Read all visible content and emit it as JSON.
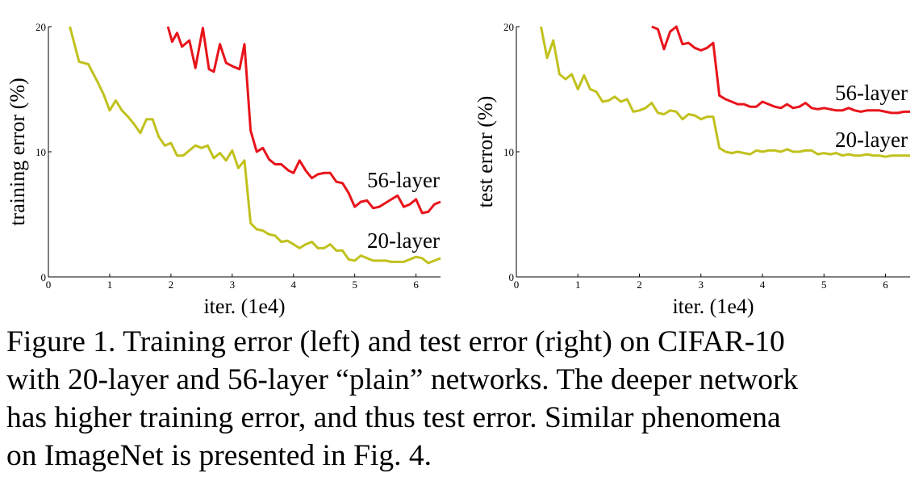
{
  "chart_data": [
    {
      "type": "line",
      "xlabel": "iter. (1e4)",
      "ylabel": "training error (%)",
      "xlim": [
        0,
        6.4
      ],
      "ylim": [
        0,
        20
      ],
      "xticks": [
        0,
        1,
        2,
        3,
        4,
        5,
        6
      ],
      "yticks": [
        0,
        10,
        20
      ],
      "series": [
        {
          "name": "56-layer",
          "color": "#e8141b",
          "x": [
            1.95,
            2.02,
            2.1,
            2.18,
            2.3,
            2.4,
            2.52,
            2.62,
            2.7,
            2.8,
            2.9,
            3.02,
            3.12,
            3.2,
            3.3,
            3.4,
            3.5,
            3.6,
            3.7,
            3.8,
            3.92,
            4.0,
            4.1,
            4.2,
            4.3,
            4.4,
            4.5,
            4.6,
            4.7,
            4.8,
            4.9,
            5.0,
            5.1,
            5.2,
            5.3,
            5.4,
            5.5,
            5.6,
            5.7,
            5.8,
            5.9,
            6.0,
            6.1,
            6.2,
            6.3,
            6.4
          ],
          "y": [
            20.0,
            18.8,
            19.5,
            18.4,
            18.9,
            16.7,
            19.9,
            16.6,
            16.4,
            18.6,
            17.1,
            16.8,
            16.6,
            18.6,
            11.7,
            10.0,
            10.3,
            9.4,
            9.0,
            9.0,
            8.5,
            8.3,
            9.3,
            8.5,
            7.9,
            8.2,
            8.3,
            8.3,
            7.6,
            7.5,
            6.7,
            5.6,
            6.0,
            6.1,
            5.5,
            5.6,
            5.9,
            6.2,
            6.5,
            5.6,
            5.8,
            6.2,
            5.1,
            5.2,
            5.8,
            6.0
          ]
        },
        {
          "name": "20-layer",
          "color": "#c1c11e",
          "x": [
            0.35,
            0.5,
            0.65,
            0.8,
            0.9,
            1.0,
            1.1,
            1.2,
            1.3,
            1.4,
            1.5,
            1.6,
            1.7,
            1.8,
            1.9,
            2.0,
            2.1,
            2.2,
            2.3,
            2.4,
            2.5,
            2.6,
            2.7,
            2.8,
            2.9,
            3.0,
            3.1,
            3.2,
            3.3,
            3.4,
            3.5,
            3.6,
            3.7,
            3.8,
            3.9,
            4.0,
            4.1,
            4.2,
            4.3,
            4.4,
            4.5,
            4.6,
            4.7,
            4.8,
            4.9,
            5.0,
            5.1,
            5.2,
            5.3,
            5.4,
            5.5,
            5.6,
            5.7,
            5.8,
            5.9,
            6.0,
            6.1,
            6.2,
            6.3,
            6.4
          ],
          "y": [
            20.0,
            17.2,
            17.0,
            15.6,
            14.6,
            13.3,
            14.1,
            13.3,
            12.8,
            12.2,
            11.5,
            12.6,
            12.6,
            11.2,
            10.5,
            10.7,
            9.7,
            9.7,
            10.1,
            10.5,
            10.3,
            10.5,
            9.5,
            9.9,
            9.3,
            10.1,
            8.7,
            9.3,
            4.3,
            3.8,
            3.7,
            3.4,
            3.3,
            2.8,
            2.9,
            2.6,
            2.3,
            2.6,
            2.8,
            2.3,
            2.3,
            2.6,
            2.1,
            2.1,
            1.4,
            1.3,
            1.7,
            1.5,
            1.3,
            1.3,
            1.3,
            1.2,
            1.2,
            1.2,
            1.4,
            1.6,
            1.5,
            1.1,
            1.3,
            1.5
          ]
        }
      ]
    },
    {
      "type": "line",
      "xlabel": "iter. (1e4)",
      "ylabel": "test error (%)",
      "xlim": [
        0,
        6.4
      ],
      "ylim": [
        0,
        20
      ],
      "xticks": [
        0,
        1,
        2,
        3,
        4,
        5,
        6
      ],
      "yticks": [
        0,
        10,
        20
      ],
      "series": [
        {
          "name": "56-layer",
          "color": "#e8141b",
          "x": [
            2.2,
            2.3,
            2.4,
            2.5,
            2.6,
            2.7,
            2.8,
            2.9,
            3.0,
            3.1,
            3.2,
            3.3,
            3.4,
            3.5,
            3.6,
            3.7,
            3.8,
            3.9,
            4.0,
            4.1,
            4.2,
            4.3,
            4.4,
            4.5,
            4.6,
            4.7,
            4.8,
            4.9,
            5.0,
            5.1,
            5.2,
            5.3,
            5.4,
            5.5,
            5.6,
            5.7,
            5.8,
            5.9,
            6.0,
            6.1,
            6.2,
            6.3,
            6.4
          ],
          "y": [
            20.0,
            19.8,
            18.2,
            19.6,
            20.0,
            18.6,
            18.7,
            18.3,
            18.1,
            18.3,
            18.7,
            14.5,
            14.2,
            14.0,
            13.8,
            13.8,
            13.6,
            13.6,
            14.0,
            13.8,
            13.6,
            13.5,
            13.8,
            13.5,
            13.6,
            13.9,
            13.5,
            13.4,
            13.5,
            13.4,
            13.3,
            13.3,
            13.5,
            13.3,
            13.2,
            13.3,
            13.3,
            13.3,
            13.2,
            13.1,
            13.1,
            13.2,
            13.2
          ]
        },
        {
          "name": "20-layer",
          "color": "#c1c11e",
          "x": [
            0.4,
            0.5,
            0.6,
            0.7,
            0.8,
            0.9,
            1.0,
            1.1,
            1.2,
            1.3,
            1.4,
            1.5,
            1.6,
            1.7,
            1.8,
            1.9,
            2.0,
            2.1,
            2.2,
            2.3,
            2.4,
            2.5,
            2.6,
            2.7,
            2.8,
            2.9,
            3.0,
            3.1,
            3.2,
            3.3,
            3.4,
            3.5,
            3.6,
            3.7,
            3.8,
            3.9,
            4.0,
            4.1,
            4.2,
            4.3,
            4.4,
            4.5,
            4.6,
            4.7,
            4.8,
            4.9,
            5.0,
            5.1,
            5.2,
            5.3,
            5.4,
            5.5,
            5.6,
            5.7,
            5.8,
            5.9,
            6.0,
            6.1,
            6.2,
            6.3,
            6.4
          ],
          "y": [
            20.0,
            17.5,
            18.9,
            16.2,
            15.8,
            16.2,
            15.0,
            16.1,
            15.0,
            14.8,
            14.0,
            14.1,
            14.4,
            14.0,
            14.2,
            13.2,
            13.3,
            13.5,
            13.9,
            13.1,
            13.0,
            13.3,
            13.2,
            12.6,
            13.0,
            12.9,
            12.6,
            12.8,
            12.8,
            10.3,
            10.0,
            9.9,
            10.0,
            9.9,
            9.8,
            10.1,
            10.0,
            10.1,
            10.1,
            10.0,
            10.2,
            10.0,
            10.0,
            10.1,
            10.1,
            9.8,
            9.9,
            9.8,
            9.9,
            9.7,
            9.8,
            9.7,
            9.7,
            9.8,
            9.7,
            9.7,
            9.6,
            9.7,
            9.7,
            9.7,
            9.7
          ]
        }
      ]
    }
  ],
  "caption": {
    "lines": [
      "Figure 1. Training error (left) and test error (right) on CIFAR-10",
      "with 20-layer and 56-layer “plain” networks. The deeper network",
      "has higher training error, and thus test error.  Similar phenomena",
      "on ImageNet is presented in Fig. 4."
    ]
  }
}
